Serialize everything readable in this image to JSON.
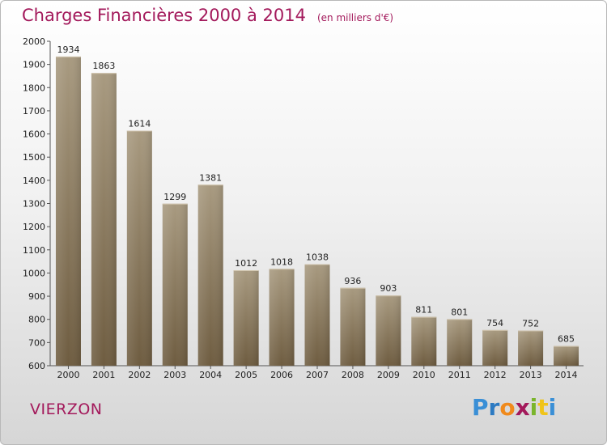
{
  "header": {
    "title": "Charges Financières 2000 à 2014",
    "subtitle": "(en milliers d'€)"
  },
  "footer": {
    "city": "VIERZON",
    "brand": {
      "letters": [
        "P",
        "r",
        "o",
        "x",
        "i",
        "t",
        "i"
      ],
      "colors": [
        "#3a8fd6",
        "#2c7ac2",
        "#f08a1c",
        "#a3195b",
        "#7ab52c",
        "#f0c419",
        "#3a8fd6"
      ]
    }
  },
  "colors": {
    "accent": "#a3195b",
    "bar_top": "#a89a80",
    "bar_bottom": "#6e5c40"
  },
  "chart_data": {
    "type": "bar",
    "title": "Charges Financières 2000 à 2014",
    "subtitle": "(en milliers d'€)",
    "categories": [
      "2000",
      "2001",
      "2002",
      "2003",
      "2004",
      "2005",
      "2006",
      "2007",
      "2008",
      "2009",
      "2010",
      "2011",
      "2012",
      "2013",
      "2014"
    ],
    "values": [
      1934,
      1863,
      1614,
      1299,
      1381,
      1012,
      1018,
      1038,
      936,
      903,
      811,
      801,
      754,
      752,
      685
    ],
    "ylim": [
      600,
      2000
    ],
    "yticks": [
      600,
      700,
      800,
      900,
      1000,
      1100,
      1200,
      1300,
      1400,
      1500,
      1600,
      1700,
      1800,
      1900,
      2000
    ],
    "grid": false,
    "legend": "none"
  }
}
